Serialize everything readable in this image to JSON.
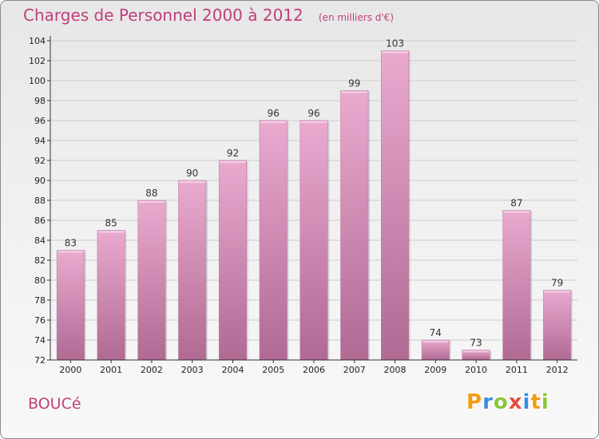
{
  "title": "Charges de Personnel 2000 à 2012",
  "subtitle": "(en milliers d'€)",
  "commune": "BOUCé",
  "logo": {
    "letters": [
      "P",
      "r",
      "o",
      "x",
      "i",
      "t",
      "i"
    ],
    "colors": [
      "#f39c12",
      "#3b8ede",
      "#8bc53f",
      "#e74c3c",
      "#3b8ede",
      "#f39c12",
      "#8bc53f"
    ]
  },
  "colors": {
    "accent": "#c0407a",
    "bar_top": "#eaaad0",
    "bar_bottom": "#b06a93",
    "axis": "#333333",
    "grid": "#cccccc"
  },
  "chart_data": {
    "type": "bar",
    "categories": [
      "2000",
      "2001",
      "2002",
      "2003",
      "2004",
      "2005",
      "2006",
      "2007",
      "2008",
      "2009",
      "2010",
      "2011",
      "2012"
    ],
    "values": [
      83,
      85,
      88,
      90,
      92,
      96,
      96,
      99,
      103,
      74,
      73,
      87,
      79
    ],
    "ylim": [
      72,
      104
    ],
    "yticks": [
      72,
      74,
      76,
      78,
      80,
      82,
      84,
      86,
      88,
      90,
      92,
      94,
      96,
      98,
      100,
      102,
      104
    ],
    "grid": true
  }
}
